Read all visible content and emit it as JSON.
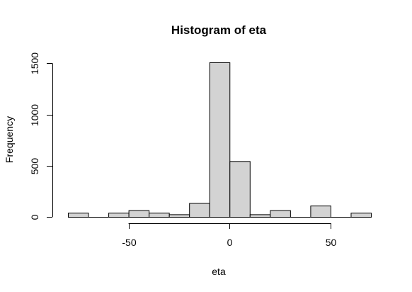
{
  "chart_data": {
    "type": "bar",
    "title": "Histogram of eta",
    "xlabel": "eta",
    "ylabel": "Frequency",
    "xlim": [
      -80,
      70
    ],
    "ylim": [
      0,
      1510
    ],
    "x_ticks": [
      -50,
      0,
      50
    ],
    "x_tick_labels": [
      "-50",
      "0",
      "50"
    ],
    "x_axis_range": [
      -50,
      50
    ],
    "y_ticks": [
      0,
      500,
      1000,
      1500
    ],
    "y_tick_labels": [
      "0",
      "500",
      "1000",
      "1500"
    ],
    "bin_edges": [
      -80,
      -70,
      -60,
      -50,
      -40,
      -30,
      -20,
      -10,
      0,
      10,
      20,
      30,
      40,
      50,
      60,
      70
    ],
    "values": [
      40,
      0,
      40,
      65,
      40,
      25,
      135,
      1510,
      545,
      25,
      65,
      0,
      110,
      0,
      40
    ],
    "bar_color": "#d3d3d3",
    "grid": false
  }
}
